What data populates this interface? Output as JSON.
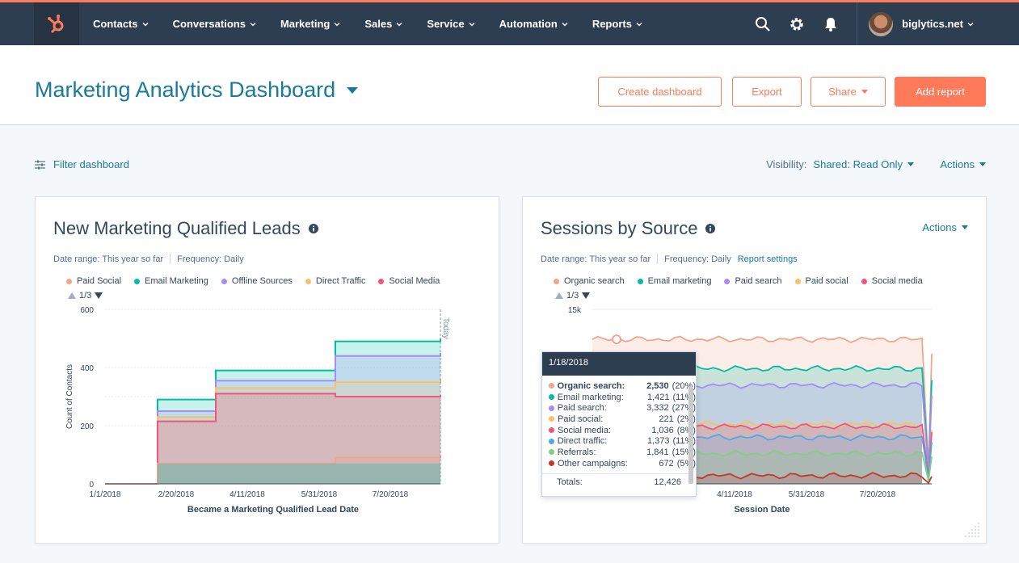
{
  "nav": {
    "items": [
      {
        "label": "Contacts"
      },
      {
        "label": "Conversations"
      },
      {
        "label": "Marketing"
      },
      {
        "label": "Sales"
      },
      {
        "label": "Service"
      },
      {
        "label": "Automation"
      },
      {
        "label": "Reports"
      }
    ],
    "account": "biglytics.net"
  },
  "header": {
    "title": "Marketing Analytics Dashboard",
    "create_label": "Create dashboard",
    "export_label": "Export",
    "share_label": "Share",
    "add_report_label": "Add report"
  },
  "toolbar": {
    "filter_label": "Filter dashboard",
    "visibility_label": "Visibility:",
    "visibility_value": "Shared: Read Only",
    "actions_label": "Actions"
  },
  "cards": {
    "mql": {
      "title": "New Marketing Qualified Leads",
      "date_range": "Date range: This year so far",
      "frequency": "Frequency: Daily",
      "pager": "1/3"
    },
    "sessions": {
      "title": "Sessions by Source",
      "date_range": "Date range: This year so far",
      "frequency": "Frequency: Daily",
      "settings_label": "Report settings",
      "actions_label": "Actions",
      "pager": "1/3"
    }
  },
  "colors": {
    "nav_bg": "#2d3e50",
    "accent": "#ff7a59",
    "link": "#1a7a9a"
  },
  "chart_data": [
    {
      "type": "area",
      "title": "New Marketing Qualified Leads",
      "xlabel": "Became a Marketing Qualified Lead Date",
      "ylabel": "Count of Contacts",
      "ylim": [
        0,
        600
      ],
      "yticks": [
        "600",
        "400",
        "200",
        "0"
      ],
      "xticks": [
        "1/1/2018",
        "2/20/2018",
        "4/11/2018",
        "5/31/2018",
        "7/20/2018"
      ],
      "today_label": "Today",
      "legend_placement": "top",
      "categories": [
        "1/1/2018",
        "2/20/2018",
        "3/22/2018",
        "6/4/2018",
        "8/28/2018"
      ],
      "series": [
        {
          "name": "Paid Social",
          "color": "#f2a58e",
          "values": [
            0,
            70,
            70,
            90,
            95
          ]
        },
        {
          "name": "Email Marketing",
          "color": "#00bda5",
          "values": [
            0,
            290,
            390,
            490,
            500
          ]
        },
        {
          "name": "Offline Sources",
          "color": "#a78bfa",
          "values": [
            0,
            250,
            355,
            440,
            450
          ]
        },
        {
          "name": "Direct Traffic",
          "color": "#f5c26b",
          "values": [
            0,
            230,
            330,
            350,
            360
          ]
        },
        {
          "name": "Social Media",
          "color": "#f2547d",
          "values": [
            0,
            215,
            310,
            300,
            305
          ]
        }
      ]
    },
    {
      "type": "area",
      "title": "Sessions by Source",
      "xlabel": "Session Date",
      "ylabel": "",
      "ylim": [
        0,
        15000
      ],
      "yticks": [
        "15k"
      ],
      "xticks": [
        "1/1/2018",
        "2/20/2018",
        "4/11/2018",
        "5/31/2018",
        "7/20/2018"
      ],
      "legend_placement": "top",
      "series": [
        {
          "name": "Organic search",
          "color": "#f2a58e",
          "level": 12426
        },
        {
          "name": "Email marketing",
          "color": "#00bda5",
          "level": 9896
        },
        {
          "name": "Paid search",
          "color": "#a78bfa",
          "level": 8475
        },
        {
          "name": "Paid social",
          "color": "#f5c26b",
          "level": 5143
        },
        {
          "name": "Social media",
          "color": "#f2547d",
          "level": 4922
        }
      ],
      "tooltip": {
        "date": "1/18/2018",
        "rows": [
          {
            "name": "Organic search:",
            "value": "2,530",
            "pct": "(20%)",
            "color": "#f2a58e"
          },
          {
            "name": "Email marketing:",
            "value": "1,421",
            "pct": "(11%)",
            "color": "#00bda5"
          },
          {
            "name": "Paid search:",
            "value": "3,332",
            "pct": "(27%)",
            "color": "#a78bfa"
          },
          {
            "name": "Paid social:",
            "value": "221",
            "pct": "(2%)",
            "color": "#f5c26b"
          },
          {
            "name": "Social media:",
            "value": "1,036",
            "pct": "(8%)",
            "color": "#f2547d"
          },
          {
            "name": "Direct traffic:",
            "value": "1,373",
            "pct": "(11%)",
            "color": "#4fa8e8"
          },
          {
            "name": "Referrals:",
            "value": "1,841",
            "pct": "(15%)",
            "color": "#7fd17f"
          },
          {
            "name": "Other campaigns:",
            "value": "672",
            "pct": "(5%)",
            "color": "#c0392b"
          }
        ],
        "total_label": "Totals:",
        "total_value": "12,426"
      }
    }
  ]
}
